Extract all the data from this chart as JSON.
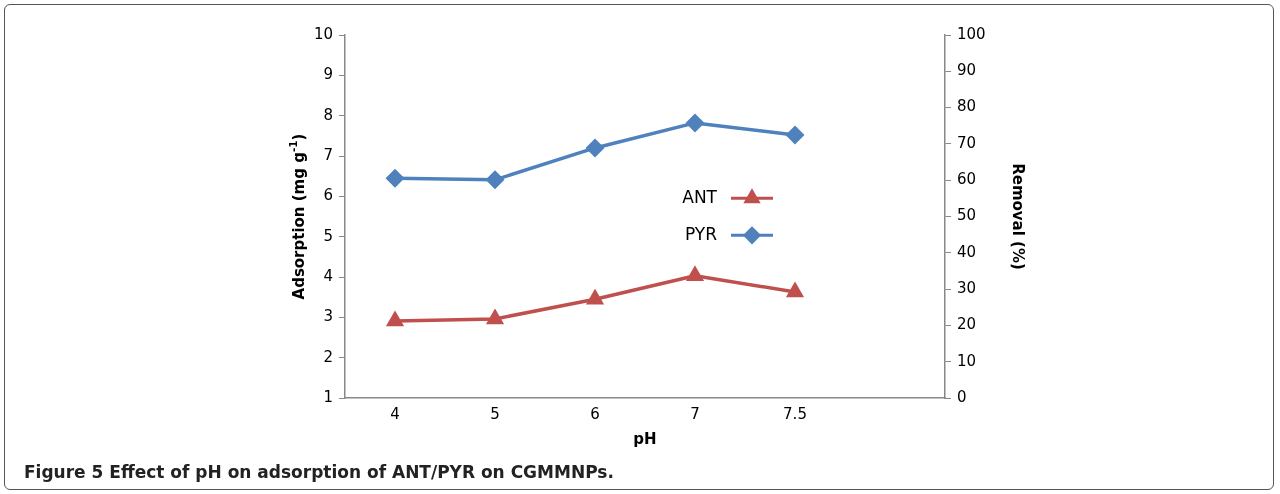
{
  "chart_data": {
    "type": "line",
    "title": "Figure 5 Effect of pH on adsorption of ANT/PYR on CGMMNPs.",
    "xlabel": "pH",
    "ylabel": "Adsorption (mg g$^{-1}$)",
    "y2label": "Removal (%)",
    "categories": [
      "4",
      "5",
      "6",
      "7",
      "7.5",
      null
    ],
    "series": [
      {
        "name": "ANT",
        "color": "#c0504d",
        "marker": "triangle",
        "values": [
          2.91,
          2.96,
          3.45,
          4.03,
          3.63,
          null
        ]
      },
      {
        "name": "PYR",
        "color": "#4f81bd",
        "marker": "diamond",
        "values": [
          6.45,
          6.41,
          7.2,
          7.82,
          7.52,
          null
        ]
      }
    ],
    "ylim": [
      1,
      10
    ],
    "yticks": [
      1,
      2,
      3,
      4,
      5,
      6,
      7,
      8,
      9,
      10
    ],
    "y2lim": [
      0,
      100
    ],
    "y2ticks": [
      0,
      10,
      20,
      30,
      40,
      50,
      60,
      70,
      80,
      90,
      100
    ],
    "grid": false,
    "legend": "center right",
    "line_style": "solid"
  }
}
